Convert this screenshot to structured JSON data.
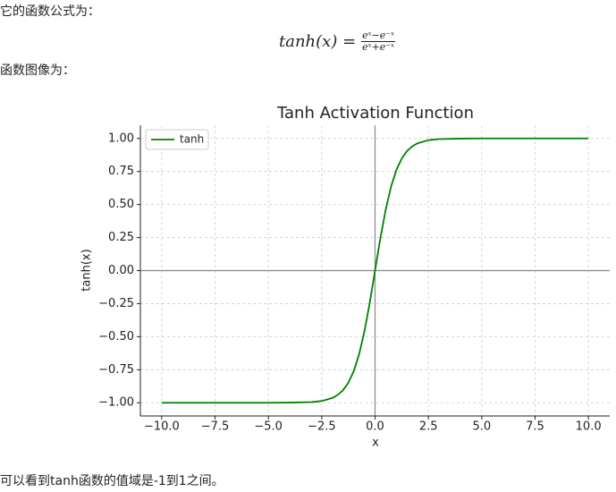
{
  "intro": "它的函数公式为：",
  "formula": {
    "lhs": "tanh(x) =",
    "numerator": "eˣ−e⁻ˣ",
    "denominator": "eˣ+e⁻ˣ"
  },
  "graph_intro": "函数图像为：",
  "conclusion": "可以看到tanh函数的值域是-1到1之间。",
  "chart_data": {
    "type": "line",
    "title": "Tanh Activation Function",
    "x_label": "x",
    "y_label": "tanh(x)",
    "x": [
      -10,
      -8,
      -6,
      -5,
      -4,
      -3,
      -2.5,
      -2,
      -1.75,
      -1.5,
      -1.25,
      -1,
      -0.75,
      -0.5,
      -0.25,
      0,
      0.25,
      0.5,
      0.75,
      1,
      1.25,
      1.5,
      1.75,
      2,
      2.5,
      3,
      4,
      5,
      6,
      8,
      10
    ],
    "series": [
      {
        "name": "tanh",
        "color": "#008000",
        "values": [
          -1.0,
          -1.0,
          -1.0,
          -1.0,
          -0.999,
          -0.995,
          -0.987,
          -0.964,
          -0.941,
          -0.905,
          -0.848,
          -0.762,
          -0.635,
          -0.462,
          -0.245,
          0,
          0.245,
          0.462,
          0.635,
          0.762,
          0.848,
          0.905,
          0.941,
          0.964,
          0.987,
          0.995,
          0.999,
          1.0,
          1.0,
          1.0,
          1.0
        ]
      }
    ],
    "xlim": [
      -11,
      11
    ],
    "xticks": [
      {
        "value": -10,
        "label": "−10.0"
      },
      {
        "value": -7.5,
        "label": "−7.5"
      },
      {
        "value": -5,
        "label": "−5.0"
      },
      {
        "value": -2.5,
        "label": "−2.5"
      },
      {
        "value": 0,
        "label": "0.0"
      },
      {
        "value": 2.5,
        "label": "2.5"
      },
      {
        "value": 5,
        "label": "5.0"
      },
      {
        "value": 7.5,
        "label": "7.5"
      },
      {
        "value": 10,
        "label": "10.0"
      }
    ],
    "ylim": [
      -1.1,
      1.1
    ],
    "yticks": [
      {
        "value": -1,
        "label": "−1.00"
      },
      {
        "value": -0.75,
        "label": "−0.75"
      },
      {
        "value": -0.5,
        "label": "−0.50"
      },
      {
        "value": -0.25,
        "label": "−0.25"
      },
      {
        "value": 0,
        "label": "0.00"
      },
      {
        "value": 0.25,
        "label": "0.25"
      },
      {
        "value": 0.5,
        "label": "0.50"
      },
      {
        "value": 0.75,
        "label": "0.75"
      },
      {
        "value": 1,
        "label": "1.00"
      }
    ],
    "grid": true,
    "zero_lines": true,
    "legend": "upper left"
  }
}
